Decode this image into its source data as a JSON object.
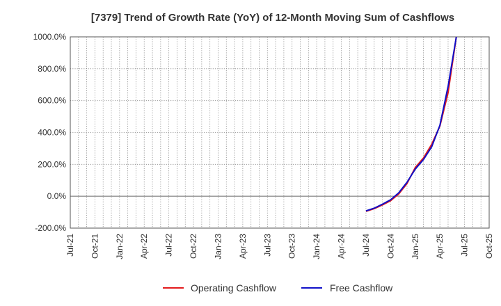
{
  "chart_data": {
    "type": "line",
    "title": "[7379]  Trend of Growth Rate (YoY) of 12-Month Moving Sum of Cashflows",
    "xlabel": "",
    "ylabel": "",
    "ylim": [
      -200,
      1000
    ],
    "y_ticks": [
      "1000.0%",
      "800.0%",
      "600.0%",
      "400.0%",
      "200.0%",
      "0.0%",
      "-200.0%"
    ],
    "y_tick_values": [
      1000,
      800,
      600,
      400,
      200,
      0,
      -200
    ],
    "x_ticks": [
      "Jul-21",
      "Oct-21",
      "Jan-22",
      "Apr-22",
      "Jul-22",
      "Oct-22",
      "Jan-23",
      "Apr-23",
      "Jul-23",
      "Oct-23",
      "Jan-24",
      "Apr-24",
      "Jul-24",
      "Oct-24",
      "Jan-25",
      "Apr-25",
      "Jul-25",
      "Oct-25"
    ],
    "grid": true,
    "legend_position": "bottom",
    "series": [
      {
        "name": "Operating Cashflow",
        "color": "#e31a1c",
        "x": [
          "Jul-24",
          "Aug-24",
          "Sep-24",
          "Oct-24",
          "Nov-24",
          "Dec-24",
          "Jan-25",
          "Feb-25",
          "Mar-25",
          "Apr-25",
          "May-25",
          "Jun-25"
        ],
        "values": [
          -95,
          -78,
          -55,
          -28,
          15,
          80,
          180,
          240,
          325,
          440,
          650,
          1000
        ]
      },
      {
        "name": "Free Cashflow",
        "color": "#1010c8",
        "x": [
          "Jul-24",
          "Aug-24",
          "Sep-24",
          "Oct-24",
          "Nov-24",
          "Dec-24",
          "Jan-25",
          "Feb-25",
          "Mar-25",
          "Apr-25",
          "May-25",
          "Jun-25"
        ],
        "values": [
          -92,
          -75,
          -50,
          -22,
          22,
          88,
          170,
          230,
          310,
          445,
          690,
          1000
        ]
      }
    ]
  }
}
